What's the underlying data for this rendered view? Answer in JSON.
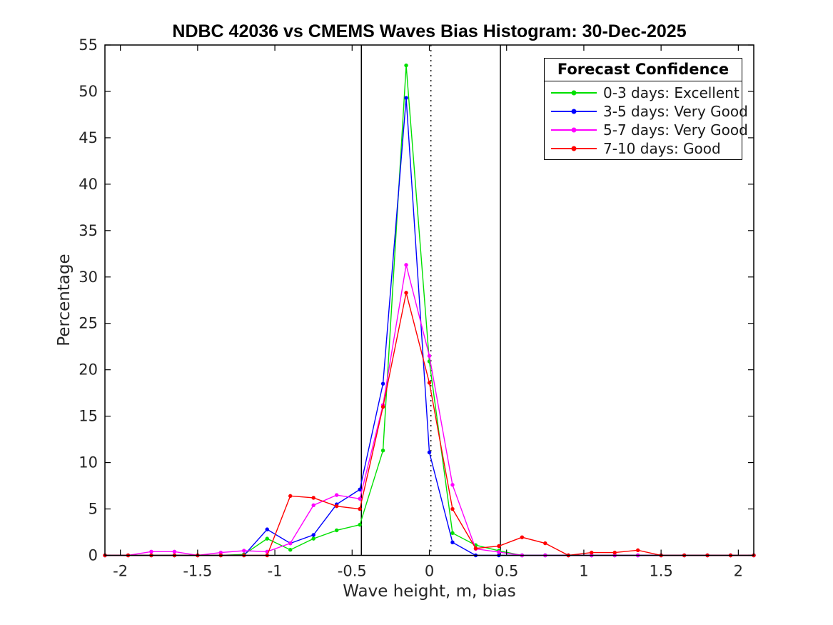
{
  "figure": {
    "background": "#ffffff",
    "text_color": "#262626",
    "axis_color": "#000000"
  },
  "chart_data": {
    "type": "line",
    "title": "NDBC 42036 vs CMEMS Waves Bias Histogram: 30-Dec-2025",
    "xlabel": "Wave height, m, bias",
    "ylabel": "Percentage",
    "xlim": [
      -2.1,
      2.1
    ],
    "ylim": [
      0,
      55
    ],
    "grid": false,
    "xticks": {
      "values": [
        -2,
        -1.5,
        -1,
        -0.5,
        0,
        0.5,
        1,
        1.5,
        2
      ],
      "labels": [
        "-2",
        "-1.5",
        "-1",
        "-0.5",
        "0",
        "0.5",
        "1",
        "1.5",
        "2"
      ]
    },
    "yticks": {
      "values": [
        0,
        5,
        10,
        15,
        20,
        25,
        30,
        35,
        40,
        45,
        50,
        55
      ],
      "labels": [
        "0",
        "5",
        "10",
        "15",
        "20",
        "25",
        "30",
        "35",
        "40",
        "45",
        "50",
        "55"
      ]
    },
    "x": [
      -2.1,
      -1.95,
      -1.8,
      -1.65,
      -1.5,
      -1.35,
      -1.2,
      -1.05,
      -0.9,
      -0.75,
      -0.6,
      -0.45,
      -0.3,
      -0.15,
      0,
      0.15,
      0.3,
      0.45,
      0.6,
      0.75,
      0.9,
      1.05,
      1.2,
      1.35,
      1.5,
      1.65,
      1.8,
      1.95,
      2.1
    ],
    "series": [
      {
        "name": "0-3 days: Excellent",
        "color": "#00e000",
        "values": [
          0,
          0,
          0,
          0,
          0,
          0,
          0.1,
          1.8,
          0.6,
          1.8,
          2.7,
          3.3,
          11.3,
          52.8,
          20.9,
          2.4,
          1.1,
          0.5,
          0,
          0,
          0,
          0,
          0,
          0,
          0,
          0,
          0,
          0,
          0
        ]
      },
      {
        "name": "3-5 days: Very Good",
        "color": "#0000ff",
        "values": [
          0,
          0,
          0,
          0,
          0,
          0,
          0,
          2.8,
          1.3,
          2.2,
          5.5,
          7.1,
          18.5,
          49.3,
          11.1,
          1.4,
          0,
          0,
          0,
          0,
          0,
          0,
          0,
          0,
          0,
          0,
          0,
          0,
          0
        ]
      },
      {
        "name": "5-7 days: Very Good",
        "color": "#ff00ff",
        "values": [
          0,
          0,
          0.4,
          0.4,
          0,
          0.3,
          0.5,
          0.4,
          1.3,
          5.4,
          6.5,
          6.1,
          16.2,
          31.3,
          21.5,
          7.6,
          0.7,
          0.35,
          0,
          0,
          0,
          0,
          0,
          0,
          0,
          0,
          0,
          0,
          0
        ]
      },
      {
        "name": "7-10 days: Good",
        "color": "#ff0000",
        "values": [
          0,
          0,
          0,
          0,
          0,
          0,
          0,
          0,
          6.4,
          6.2,
          5.3,
          5.0,
          16.0,
          28.3,
          18.6,
          5.0,
          0.75,
          1.0,
          1.95,
          1.3,
          0,
          0.3,
          0.3,
          0.55,
          0,
          0,
          0,
          0,
          0
        ]
      }
    ],
    "reference_lines": [
      {
        "x": -0.44,
        "style": "solid",
        "color": "#000000"
      },
      {
        "x": 0.46,
        "style": "solid",
        "color": "#000000"
      },
      {
        "x": 0.01,
        "style": "dotted",
        "color": "#000000"
      }
    ],
    "legend": {
      "title": "Forecast Confidence",
      "position": "top-right"
    }
  }
}
